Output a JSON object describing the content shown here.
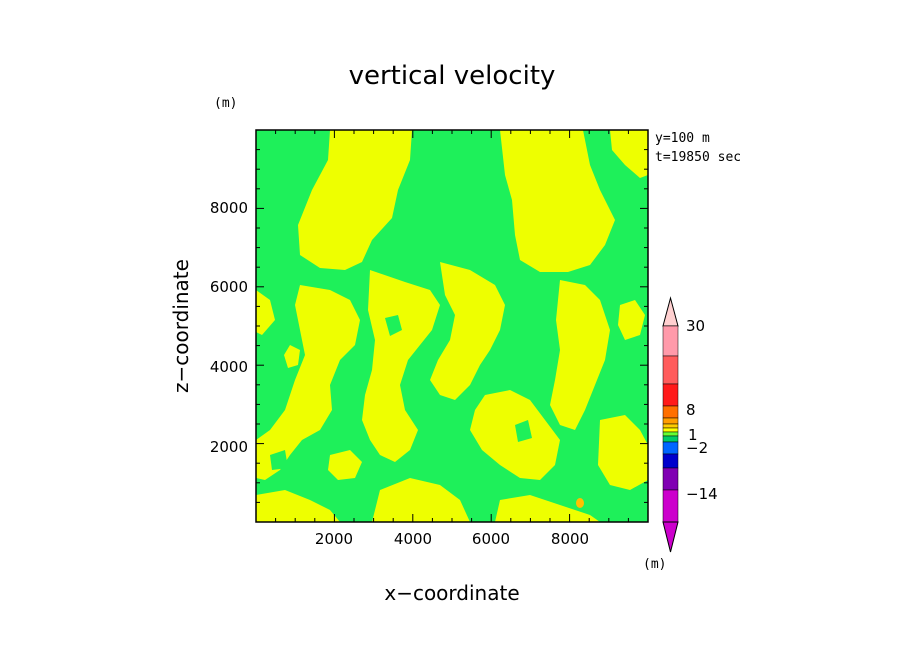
{
  "chart_data": {
    "type": "heatmap",
    "title": "vertical velocity",
    "xlabel": "x−coordinate",
    "ylabel": "z−coordinate",
    "xunit": "(m)",
    "yunit": "(m)",
    "xlim": [
      0,
      10000
    ],
    "ylim": [
      0,
      10000
    ],
    "xticks": [
      "2000",
      "4000",
      "6000",
      "8000"
    ],
    "yticks": [
      "2000",
      "4000",
      "6000",
      "8000"
    ],
    "annotations": [
      "y=100 m",
      "t=19850 sec"
    ],
    "colorbar": {
      "unit": "(m)",
      "labels": [
        "30",
        "8",
        "1",
        "−2",
        "−14"
      ],
      "colors": [
        "#ff9aaa",
        "#ff5c5c",
        "#ff1a1a",
        "#ff6f00",
        "#ff9d00",
        "#ffcc00",
        "#ffff00",
        "#66ff33",
        "#00cc66",
        "#0066ff",
        "#0000cc",
        "#8000b3",
        "#cc00cc"
      ]
    },
    "fill_colors": {
      "green": "#1ef05a",
      "yellow": "#eeff00",
      "orange": "#ffc000"
    },
    "description_values": "filled contour field of vertical velocity; yellow regions approx 0 to 1, green regions approx -1 to 0"
  }
}
